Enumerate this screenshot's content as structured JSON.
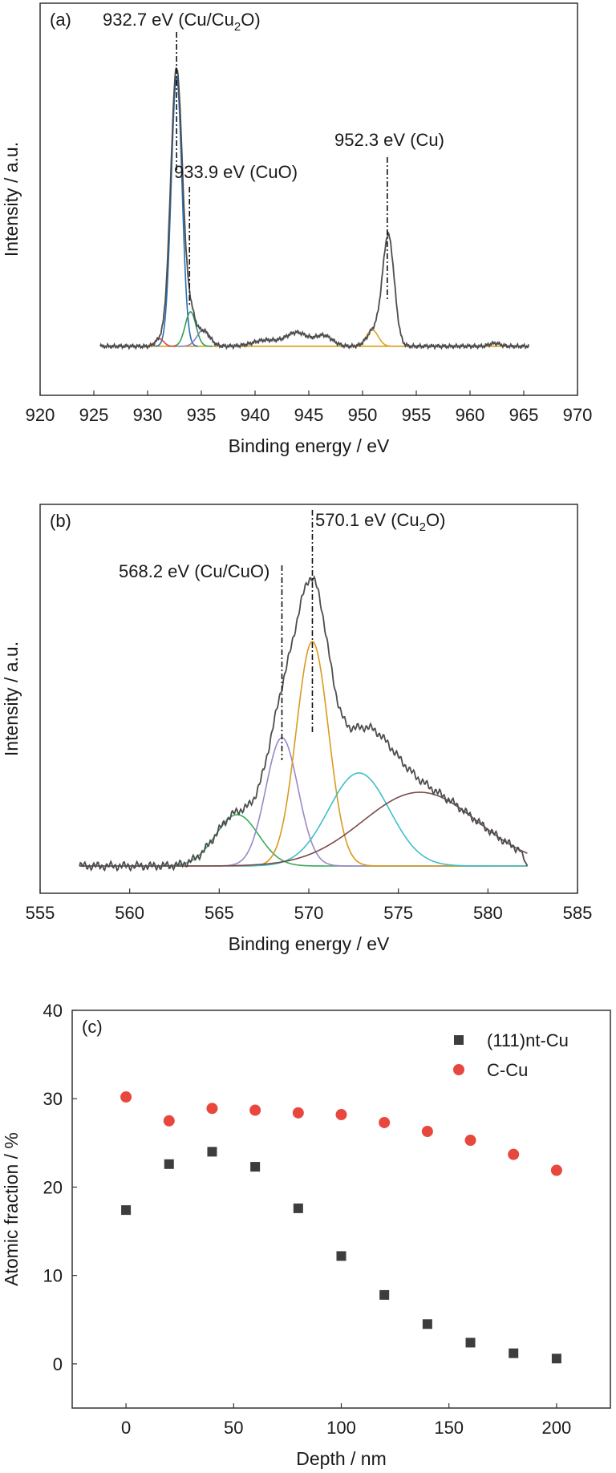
{
  "chart_data": [
    {
      "panel": "(a)",
      "type": "line",
      "xlabel": "Binding energy / eV",
      "ylabel": "Intensity / a.u.",
      "xlim": [
        920,
        970
      ],
      "x_ticks": [
        920,
        925,
        930,
        935,
        940,
        945,
        950,
        955,
        960,
        965,
        970
      ],
      "y_ticks_shown": false,
      "grid": false,
      "annotations": [
        {
          "text_main": "932.7 eV (Cu/Cu",
          "text_sub": "2",
          "text_tail": "O)",
          "x": 932.7
        },
        {
          "text_main": "933.9 eV (CuO)",
          "text_sub": "",
          "text_tail": "",
          "x": 933.9
        },
        {
          "text_main": "952.3 eV (Cu)",
          "text_sub": "",
          "text_tail": "",
          "x": 952.3
        }
      ],
      "measured": {
        "color": "#4d4d4d",
        "x_range": [
          925.6,
          965.5
        ],
        "baseline": 0.03,
        "peaks": [
          {
            "center": 932.7,
            "height": 0.93,
            "width": 0.55
          },
          {
            "center": 934.0,
            "height": 0.1,
            "width": 0.45
          },
          {
            "center": 935.2,
            "height": 0.05,
            "width": 0.6
          },
          {
            "center": 931.1,
            "height": 0.02,
            "width": 0.4
          },
          {
            "center": 941.0,
            "height": 0.02,
            "width": 1.2
          },
          {
            "center": 943.9,
            "height": 0.045,
            "width": 1.0
          },
          {
            "center": 946.4,
            "height": 0.035,
            "width": 0.8
          },
          {
            "center": 951.0,
            "height": 0.05,
            "width": 0.6
          },
          {
            "center": 952.4,
            "height": 0.37,
            "width": 0.55
          },
          {
            "center": 962.3,
            "height": 0.01,
            "width": 0.5
          }
        ]
      },
      "components": [
        {
          "color": "#2a6fb4",
          "center": 932.7,
          "height": 0.9,
          "width": 0.5
        },
        {
          "color": "#2ca05a",
          "center": 934.0,
          "height": 0.115,
          "width": 0.5
        },
        {
          "color": "#8f7fc0",
          "center": 935.2,
          "height": 0.055,
          "width": 0.6
        },
        {
          "color": "#d94040",
          "center": 931.1,
          "height": 0.025,
          "width": 0.4
        },
        {
          "color": "#e0a020",
          "center": 950.9,
          "height": 0.055,
          "width": 0.55
        }
      ],
      "fit_baseline": {
        "color": "#d4a017",
        "y": 0.03
      }
    },
    {
      "panel": "(b)",
      "type": "line",
      "xlabel": "Binding energy / eV",
      "ylabel": "Intensity / a.u.",
      "xlim": [
        555,
        585
      ],
      "x_ticks": [
        555,
        560,
        565,
        570,
        575,
        580,
        585
      ],
      "y_ticks_shown": false,
      "grid": false,
      "annotations": [
        {
          "text_main": "568.2 eV (Cu/CuO)",
          "text_sub": "",
          "text_tail": "",
          "x": 568.5
        },
        {
          "text_main": "570.1 eV (Cu",
          "text_sub": "2",
          "text_tail": "O)",
          "x": 570.2
        }
      ],
      "measured": {
        "color": "#4d4d4d",
        "x_range": [
          557.2,
          582.2
        ],
        "baseline": 0.04
      },
      "components": [
        {
          "color": "#3aaa5a",
          "center": 566.0,
          "height": 0.16,
          "width": 1.2
        },
        {
          "color": "#9b88c8",
          "center": 568.5,
          "height": 0.4,
          "width": 0.9
        },
        {
          "color": "#d99a20",
          "center": 570.2,
          "height": 0.7,
          "width": 0.9
        },
        {
          "color": "#3cc0c8",
          "center": 572.8,
          "height": 0.29,
          "width": 1.7
        },
        {
          "color": "#7a4a4a",
          "center": 576.2,
          "height": 0.23,
          "width": 3.2
        }
      ]
    },
    {
      "panel": "(c)",
      "type": "scatter",
      "xlabel": "Depth / nm",
      "ylabel": "Atomic fraction / %",
      "xlim": [
        -25,
        225
      ],
      "ylim": [
        -5,
        40
      ],
      "x_ticks": [
        0,
        50,
        100,
        150,
        200
      ],
      "y_ticks": [
        0,
        10,
        20,
        30,
        40
      ],
      "grid": false,
      "legend_position": "top-right",
      "series": [
        {
          "name": "(111)nt-Cu",
          "marker": "square",
          "color": "#3d3d3d",
          "x": [
            0,
            20,
            40,
            60,
            80,
            100,
            120,
            140,
            160,
            180,
            200
          ],
          "y": [
            17.4,
            22.6,
            24.0,
            22.3,
            17.6,
            12.2,
            7.8,
            4.5,
            2.4,
            1.2,
            0.6
          ]
        },
        {
          "name": "C-Cu",
          "marker": "circle",
          "color": "#e8473e",
          "x": [
            0,
            20,
            40,
            60,
            80,
            100,
            120,
            140,
            160,
            180,
            200
          ],
          "y": [
            30.2,
            27.5,
            28.9,
            28.7,
            28.4,
            28.2,
            27.3,
            26.3,
            25.3,
            23.7,
            21.9
          ]
        }
      ]
    }
  ]
}
